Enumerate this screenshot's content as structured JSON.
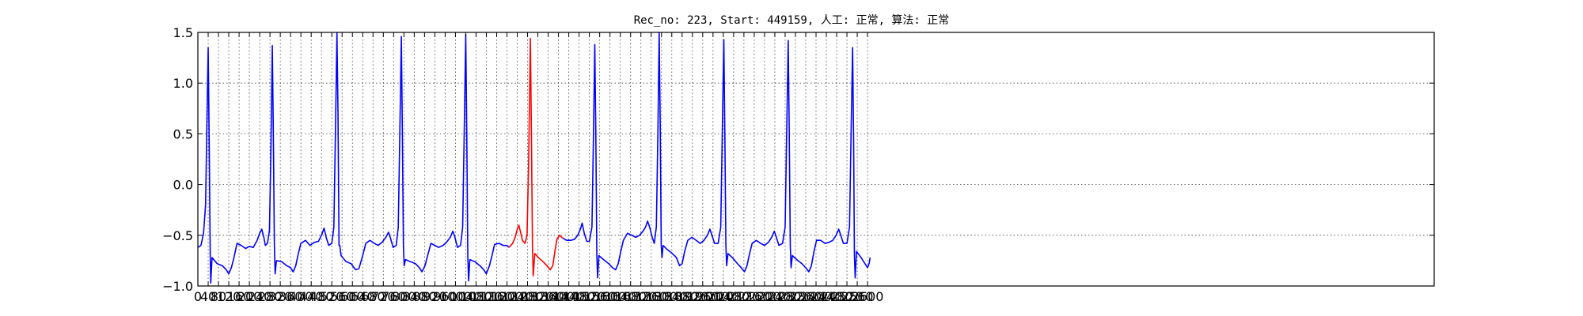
{
  "chart_data": {
    "type": "line",
    "title": "Rec_no: 223, Start: 449159, 人工: 正常, 算法: 正常",
    "xlabel": "",
    "ylabel": "",
    "xlim": [
      0,
      4800
    ],
    "ylim": [
      -1.0,
      1.5
    ],
    "grid": true,
    "yticks": [
      -1.0,
      -0.5,
      0.0,
      0.5,
      1.0,
      1.5
    ],
    "ytick_labels": [
      "−1.0",
      "−0.5",
      "0.0",
      "0.5",
      "1.0",
      "1.5"
    ],
    "xticks": [
      0,
      40,
      80,
      120,
      160,
      200,
      240,
      280,
      320,
      360,
      400,
      440,
      480,
      520,
      560,
      600,
      640,
      680,
      720,
      760,
      800,
      840,
      880,
      920,
      960,
      1000,
      1040,
      1080,
      1120,
      1160,
      1200,
      1240,
      1280,
      1320,
      1360,
      1400,
      1440,
      1480,
      1520,
      1560,
      1600,
      1640,
      1680,
      1720,
      1760,
      1800,
      1840,
      1880,
      1920,
      1960,
      2000,
      2040,
      2080,
      2120,
      2160,
      2200,
      2240,
      2280,
      2320,
      2360,
      2400,
      2440,
      2480,
      2520,
      2560,
      2600
    ],
    "xtick_labels": [
      "0",
      "40",
      "80",
      "120",
      "160",
      "200",
      "240",
      "280",
      "320",
      "360",
      "400",
      "440",
      "480",
      "520",
      "560",
      "600",
      "640",
      "680",
      "720",
      "760",
      "800",
      "840",
      "880",
      "920",
      "960",
      "1000",
      "1040",
      "1080",
      "1120",
      "1160",
      "1200",
      "1240",
      "1280",
      "1320",
      "1360",
      "1400",
      "1440",
      "1480",
      "1520",
      "1560",
      "1600",
      "1640",
      "1680",
      "1720",
      "1760",
      "1800",
      "1840",
      "1880",
      "1920",
      "1960",
      "2000",
      "2040",
      "2080",
      "2120",
      "2160",
      "2200",
      "2240",
      "2280",
      "2320",
      "2360",
      "2400",
      "2440",
      "2480",
      "2520",
      "2560",
      "2600"
    ],
    "x_end": 2610,
    "beat_peaks": [
      {
        "x": 40,
        "peak": 1.35,
        "color": "#0000ff"
      },
      {
        "x": 289,
        "peak": 1.37,
        "color": "#0000ff"
      },
      {
        "x": 540,
        "peak": 1.5,
        "color": "#0000ff"
      },
      {
        "x": 790,
        "peak": 1.46,
        "color": "#0000ff"
      },
      {
        "x": 1040,
        "peak": 1.48,
        "color": "#0000ff"
      },
      {
        "x": 1291,
        "peak": 1.44,
        "color": "#ff0000"
      },
      {
        "x": 1541,
        "peak": 1.38,
        "color": "#0000ff"
      },
      {
        "x": 1791,
        "peak": 1.5,
        "color": "#0000ff"
      },
      {
        "x": 2042,
        "peak": 1.43,
        "color": "#0000ff"
      },
      {
        "x": 2292,
        "peak": 1.42,
        "color": "#0000ff"
      },
      {
        "x": 2542,
        "peak": 1.35,
        "color": "#0000ff"
      }
    ],
    "series": [
      {
        "color": "#0000ff",
        "points": [
          [
            0,
            -0.62
          ],
          [
            12,
            -0.6
          ],
          [
            22,
            -0.48
          ],
          [
            30,
            -0.2
          ],
          [
            35,
            0.6
          ],
          [
            40,
            1.35
          ],
          [
            44,
            0.4
          ],
          [
            48,
            -0.7
          ],
          [
            50,
            -0.97
          ],
          [
            55,
            -0.72
          ],
          [
            75,
            -0.78
          ],
          [
            95,
            -0.8
          ],
          [
            110,
            -0.84
          ],
          [
            120,
            -0.88
          ],
          [
            130,
            -0.82
          ],
          [
            140,
            -0.72
          ],
          [
            152,
            -0.58
          ],
          [
            168,
            -0.6
          ],
          [
            185,
            -0.63
          ],
          [
            200,
            -0.61
          ],
          [
            215,
            -0.62
          ],
          [
            230,
            -0.55
          ],
          [
            240,
            -0.48
          ],
          [
            248,
            -0.44
          ],
          [
            256,
            -0.52
          ],
          [
            262,
            -0.6
          ],
          [
            270,
            -0.58
          ],
          [
            278,
            -0.45
          ],
          [
            284,
            0.4
          ],
          [
            289,
            1.37
          ],
          [
            293,
            0.5
          ],
          [
            297,
            -0.6
          ],
          [
            300,
            -0.88
          ],
          [
            305,
            -0.75
          ],
          [
            325,
            -0.76
          ],
          [
            345,
            -0.8
          ],
          [
            360,
            -0.82
          ],
          [
            370,
            -0.86
          ],
          [
            380,
            -0.8
          ],
          [
            390,
            -0.68
          ],
          [
            400,
            -0.58
          ],
          [
            418,
            -0.55
          ],
          [
            435,
            -0.6
          ],
          [
            452,
            -0.57
          ],
          [
            468,
            -0.56
          ],
          [
            480,
            -0.5
          ],
          [
            490,
            -0.43
          ],
          [
            498,
            -0.52
          ],
          [
            508,
            -0.6
          ],
          [
            520,
            -0.58
          ],
          [
            528,
            -0.42
          ],
          [
            534,
            0.5
          ],
          [
            540,
            1.5
          ],
          [
            544,
            0.7
          ],
          [
            548,
            -0.6
          ],
          [
            551,
            -0.6
          ],
          [
            556,
            -0.7
          ],
          [
            575,
            -0.76
          ],
          [
            595,
            -0.78
          ],
          [
            612,
            -0.84
          ],
          [
            625,
            -0.83
          ],
          [
            640,
            -0.7
          ],
          [
            652,
            -0.58
          ],
          [
            668,
            -0.55
          ],
          [
            685,
            -0.58
          ],
          [
            700,
            -0.6
          ],
          [
            715,
            -0.57
          ],
          [
            730,
            -0.52
          ],
          [
            740,
            -0.47
          ],
          [
            748,
            -0.53
          ],
          [
            758,
            -0.62
          ],
          [
            770,
            -0.6
          ],
          [
            778,
            -0.42
          ],
          [
            784,
            0.5
          ],
          [
            790,
            1.46
          ],
          [
            794,
            0.5
          ],
          [
            798,
            -0.6
          ],
          [
            801,
            -0.8
          ],
          [
            806,
            -0.74
          ],
          [
            825,
            -0.76
          ],
          [
            845,
            -0.78
          ],
          [
            860,
            -0.82
          ],
          [
            870,
            -0.86
          ],
          [
            882,
            -0.8
          ],
          [
            892,
            -0.7
          ],
          [
            905,
            -0.58
          ],
          [
            920,
            -0.6
          ],
          [
            935,
            -0.62
          ],
          [
            952,
            -0.6
          ],
          [
            965,
            -0.57
          ],
          [
            980,
            -0.52
          ],
          [
            990,
            -0.46
          ],
          [
            998,
            -0.52
          ],
          [
            1008,
            -0.62
          ],
          [
            1020,
            -0.6
          ],
          [
            1028,
            -0.42
          ],
          [
            1034,
            0.5
          ],
          [
            1040,
            1.48
          ],
          [
            1044,
            0.5
          ],
          [
            1048,
            -0.7
          ],
          [
            1051,
            -0.95
          ],
          [
            1056,
            -0.74
          ],
          [
            1075,
            -0.76
          ],
          [
            1095,
            -0.8
          ],
          [
            1110,
            -0.84
          ],
          [
            1120,
            -0.88
          ],
          [
            1132,
            -0.8
          ],
          [
            1142,
            -0.7
          ],
          [
            1152,
            -0.59
          ],
          [
            1170,
            -0.58
          ],
          [
            1185,
            -0.6
          ],
          [
            1200,
            -0.6
          ],
          [
            1208,
            -0.62
          ]
        ]
      },
      {
        "color": "#ff0000",
        "points": [
          [
            1208,
            -0.62
          ],
          [
            1222,
            -0.58
          ],
          [
            1232,
            -0.52
          ],
          [
            1240,
            -0.44
          ],
          [
            1246,
            -0.4
          ],
          [
            1252,
            -0.46
          ],
          [
            1260,
            -0.55
          ],
          [
            1270,
            -0.58
          ],
          [
            1278,
            -0.5
          ],
          [
            1284,
            0.2
          ],
          [
            1291,
            1.44
          ],
          [
            1295,
            0.5
          ],
          [
            1299,
            -0.6
          ],
          [
            1302,
            -0.9
          ],
          [
            1308,
            -0.68
          ],
          [
            1322,
            -0.72
          ],
          [
            1340,
            -0.76
          ],
          [
            1355,
            -0.8
          ],
          [
            1368,
            -0.84
          ],
          [
            1378,
            -0.8
          ],
          [
            1386,
            -0.66
          ],
          [
            1394,
            -0.54
          ],
          [
            1404,
            -0.5
          ],
          [
            1418,
            -0.53
          ]
        ]
      },
      {
        "color": "#0000ff",
        "points": [
          [
            1418,
            -0.53
          ],
          [
            1432,
            -0.55
          ],
          [
            1448,
            -0.55
          ],
          [
            1462,
            -0.54
          ],
          [
            1475,
            -0.5
          ],
          [
            1485,
            -0.44
          ],
          [
            1492,
            -0.38
          ],
          [
            1500,
            -0.48
          ],
          [
            1510,
            -0.56
          ],
          [
            1520,
            -0.56
          ],
          [
            1530,
            -0.42
          ],
          [
            1536,
            0.5
          ],
          [
            1541,
            1.38
          ],
          [
            1545,
            0.5
          ],
          [
            1549,
            -0.7
          ],
          [
            1552,
            -0.92
          ],
          [
            1557,
            -0.7
          ],
          [
            1575,
            -0.74
          ],
          [
            1595,
            -0.78
          ],
          [
            1610,
            -0.82
          ],
          [
            1622,
            -0.84
          ],
          [
            1632,
            -0.78
          ],
          [
            1642,
            -0.66
          ],
          [
            1652,
            -0.55
          ],
          [
            1668,
            -0.48
          ],
          [
            1685,
            -0.5
          ],
          [
            1700,
            -0.52
          ],
          [
            1715,
            -0.5
          ],
          [
            1728,
            -0.46
          ],
          [
            1738,
            -0.42
          ],
          [
            1746,
            -0.36
          ],
          [
            1754,
            -0.42
          ],
          [
            1764,
            -0.52
          ],
          [
            1772,
            -0.58
          ],
          [
            1780,
            -0.42
          ],
          [
            1786,
            0.5
          ],
          [
            1791,
            1.5
          ],
          [
            1795,
            0.6
          ],
          [
            1799,
            -0.6
          ],
          [
            1802,
            -0.72
          ],
          [
            1806,
            -0.6
          ],
          [
            1822,
            -0.64
          ],
          [
            1842,
            -0.68
          ],
          [
            1858,
            -0.72
          ],
          [
            1870,
            -0.8
          ],
          [
            1880,
            -0.78
          ],
          [
            1890,
            -0.66
          ],
          [
            1902,
            -0.55
          ],
          [
            1918,
            -0.52
          ],
          [
            1935,
            -0.55
          ],
          [
            1950,
            -0.58
          ],
          [
            1965,
            -0.55
          ],
          [
            1978,
            -0.5
          ],
          [
            1988,
            -0.44
          ],
          [
            1996,
            -0.5
          ],
          [
            2006,
            -0.58
          ],
          [
            2020,
            -0.58
          ],
          [
            2030,
            -0.42
          ],
          [
            2036,
            0.5
          ],
          [
            2042,
            1.43
          ],
          [
            2046,
            0.5
          ],
          [
            2050,
            -0.6
          ],
          [
            2053,
            -0.8
          ],
          [
            2058,
            -0.68
          ],
          [
            2075,
            -0.72
          ],
          [
            2095,
            -0.78
          ],
          [
            2110,
            -0.82
          ],
          [
            2122,
            -0.86
          ],
          [
            2132,
            -0.8
          ],
          [
            2142,
            -0.68
          ],
          [
            2152,
            -0.58
          ],
          [
            2168,
            -0.55
          ],
          [
            2185,
            -0.58
          ],
          [
            2200,
            -0.6
          ],
          [
            2215,
            -0.57
          ],
          [
            2228,
            -0.52
          ],
          [
            2238,
            -0.46
          ],
          [
            2246,
            -0.52
          ],
          [
            2256,
            -0.6
          ],
          [
            2270,
            -0.58
          ],
          [
            2280,
            -0.42
          ],
          [
            2286,
            0.5
          ],
          [
            2292,
            1.42
          ],
          [
            2296,
            0.5
          ],
          [
            2300,
            -0.6
          ],
          [
            2303,
            -0.82
          ],
          [
            2308,
            -0.7
          ],
          [
            2325,
            -0.74
          ],
          [
            2345,
            -0.78
          ],
          [
            2360,
            -0.82
          ],
          [
            2372,
            -0.86
          ],
          [
            2382,
            -0.8
          ],
          [
            2392,
            -0.66
          ],
          [
            2402,
            -0.55
          ],
          [
            2418,
            -0.55
          ],
          [
            2435,
            -0.58
          ],
          [
            2450,
            -0.57
          ],
          [
            2465,
            -0.55
          ],
          [
            2478,
            -0.5
          ],
          [
            2488,
            -0.44
          ],
          [
            2496,
            -0.5
          ],
          [
            2506,
            -0.58
          ],
          [
            2520,
            -0.58
          ],
          [
            2530,
            -0.42
          ],
          [
            2536,
            0.5
          ],
          [
            2542,
            1.35
          ],
          [
            2546,
            0.4
          ],
          [
            2549,
            -0.7
          ],
          [
            2552,
            -0.92
          ],
          [
            2557,
            -0.66
          ],
          [
            2575,
            -0.72
          ],
          [
            2590,
            -0.78
          ],
          [
            2600,
            -0.82
          ],
          [
            2606,
            -0.78
          ],
          [
            2610,
            -0.72
          ]
        ]
      }
    ]
  }
}
